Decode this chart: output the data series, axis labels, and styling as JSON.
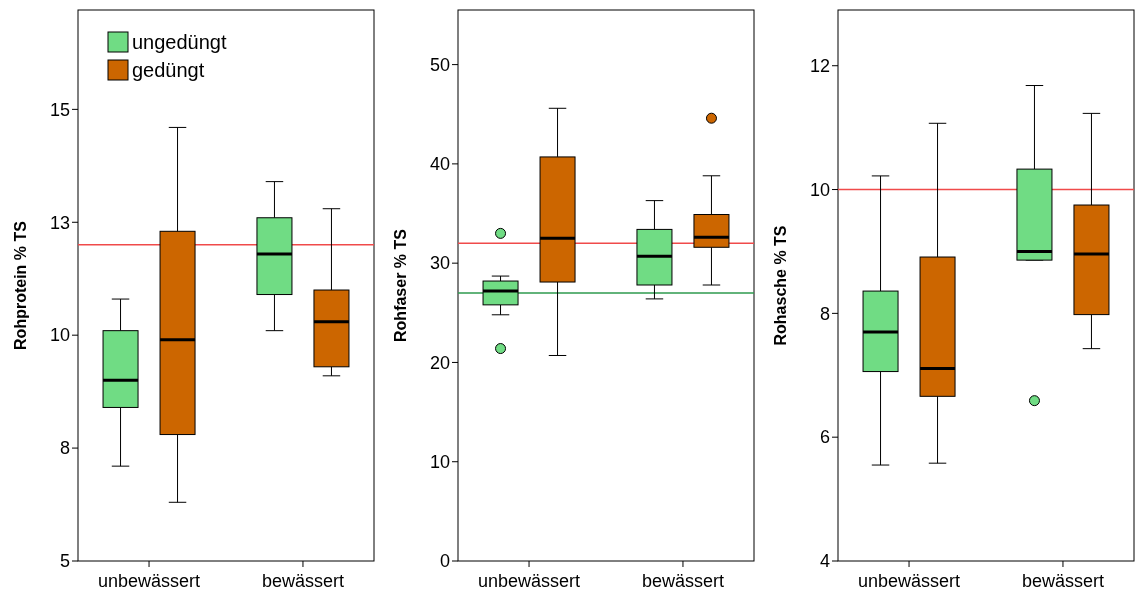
{
  "chart_data": [
    {
      "type": "box",
      "ylabel": "Rohprotein % TS",
      "categories": [
        "unbewässert",
        "bewässert"
      ],
      "ylim": [
        5,
        17.2
      ],
      "yticks": [
        5,
        {
          "value": 7.5,
          "label": "8"
        },
        10,
        {
          "value": 12.5,
          "label": "13"
        },
        15
      ],
      "legend": "top left",
      "grid": false,
      "series": [
        {
          "name": "ungedüngt",
          "color": "#70dc84",
          "boxes": [
            {
              "low": 7.1,
              "q1": 8.4,
              "median": 9.0,
              "q3": 10.1,
              "high": 10.8
            },
            {
              "low": 10.1,
              "q1": 10.9,
              "median": 11.8,
              "q3": 12.6,
              "high": 13.4
            }
          ]
        },
        {
          "name": "gedüngt",
          "color": "#cc6600",
          "boxes": [
            {
              "low": 6.3,
              "q1": 7.8,
              "median": 9.9,
              "q3": 12.3,
              "high": 14.6
            },
            {
              "low": 9.1,
              "q1": 9.3,
              "median": 10.3,
              "q3": 11.0,
              "high": 12.8
            }
          ]
        }
      ],
      "ref_lines": [
        {
          "axis": "y",
          "value": 12,
          "color": "#f04a4a"
        }
      ]
    },
    {
      "type": "box",
      "ylabel": "Rohfaser % TS",
      "categories": [
        "unbewässert",
        "bewässert"
      ],
      "ylim": [
        0,
        55.5
      ],
      "yticks": [
        0,
        10,
        20,
        30,
        40,
        50
      ],
      "grid": false,
      "series": [
        {
          "color": "#70dc84",
          "boxes": [
            {
              "low": 24.8,
              "q1": 25.8,
              "median": 27.2,
              "q3": 28.2,
              "high": 28.7,
              "outliers": [
                33.0,
                21.4
              ]
            },
            {
              "low": 26.4,
              "q1": 27.8,
              "median": 30.7,
              "q3": 33.4,
              "high": 36.3
            }
          ]
        },
        {
          "color": "#cc6600",
          "boxes": [
            {
              "low": 20.7,
              "q1": 28.1,
              "median": 32.5,
              "q3": 40.7,
              "high": 45.6
            },
            {
              "low": 27.8,
              "q1": 31.6,
              "median": 32.6,
              "q3": 34.9,
              "high": 38.8,
              "outliers": [
                44.6
              ]
            }
          ]
        }
      ],
      "ref_lines": [
        {
          "axis": "y",
          "value": 32,
          "color": "#f04a4a"
        },
        {
          "axis": "y",
          "value": 27,
          "color": "#2e9a4e"
        }
      ]
    },
    {
      "type": "box",
      "ylabel": "Rohasche % TS",
      "categories": [
        "unbewässert",
        "bewässert"
      ],
      "ylim": [
        4,
        12.9
      ],
      "yticks": [
        4,
        6,
        8,
        10,
        12
      ],
      "grid": false,
      "series": [
        {
          "color": "#70dc84",
          "boxes": [
            {
              "low": 5.55,
              "q1": 7.06,
              "median": 7.7,
              "q3": 8.36,
              "high": 10.22
            },
            {
              "low": 8.86,
              "q1": 8.86,
              "median": 9.0,
              "q3": 10.33,
              "high": 11.68,
              "outliers": [
                6.59
              ]
            }
          ]
        },
        {
          "color": "#cc6600",
          "boxes": [
            {
              "low": 5.58,
              "q1": 6.66,
              "median": 7.11,
              "q3": 8.91,
              "high": 11.07
            },
            {
              "low": 7.43,
              "q1": 7.98,
              "median": 8.96,
              "q3": 9.75,
              "high": 11.23
            }
          ]
        }
      ],
      "ref_lines": [
        {
          "axis": "y",
          "value": 10,
          "color": "#f04a4a"
        }
      ]
    }
  ]
}
